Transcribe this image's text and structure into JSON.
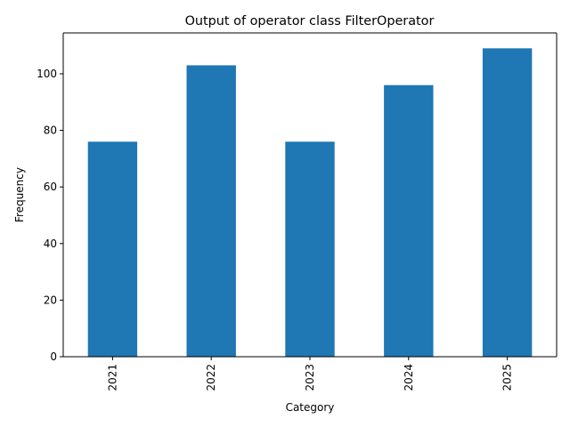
{
  "chart_data": {
    "type": "bar",
    "title": "Output of operator class FilterOperator",
    "xlabel": "Category",
    "ylabel": "Frequency",
    "categories": [
      "2021",
      "2022",
      "2023",
      "2024",
      "2025"
    ],
    "values": [
      76,
      103,
      76,
      96,
      109
    ],
    "ylim": [
      0,
      114.45
    ],
    "yticks": [
      0,
      20,
      40,
      60,
      80,
      100
    ],
    "bar_color": "#1f77b4",
    "grid": false,
    "legend": "none"
  }
}
